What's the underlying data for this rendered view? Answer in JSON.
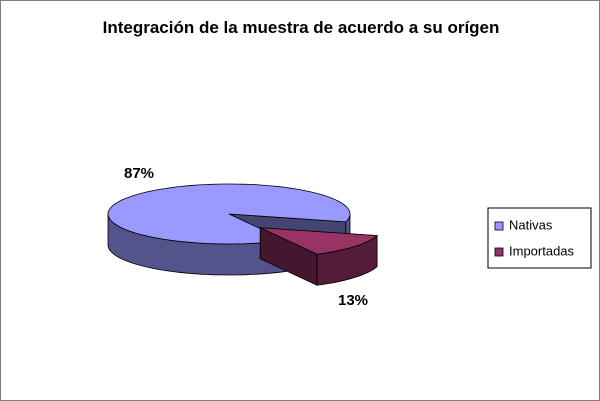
{
  "chart_data": {
    "type": "pie3d",
    "title": "Integración de la muestra de acuerdo a su orígen",
    "categories": [
      "Nativas",
      "Importadas"
    ],
    "values": [
      87,
      13
    ],
    "value_labels": [
      "87%",
      "13%"
    ],
    "colors": [
      "#9999ff",
      "#993366"
    ],
    "legend": "right"
  }
}
